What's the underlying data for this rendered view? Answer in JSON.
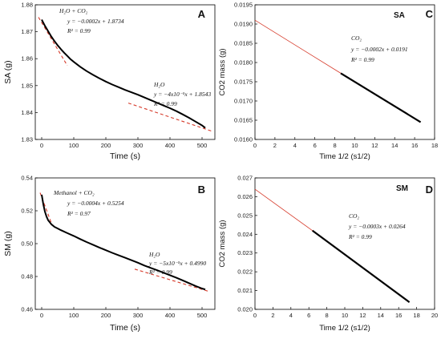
{
  "chart_data": [
    {
      "type": "line",
      "panel_label": "A",
      "xlabel": "Time  (s)",
      "ylabel": "SA (g)",
      "xticks": [
        "0",
        "100",
        "200",
        "300",
        "400",
        "500"
      ],
      "yticks": [
        "1.83",
        "1.84",
        "1.85",
        "1.86",
        "1.87",
        "1.88"
      ],
      "xlim": [
        -20,
        540
      ],
      "ylim": [
        1.83,
        1.88
      ],
      "series": [
        {
          "x": [
            0,
            10,
            20,
            30,
            40,
            50,
            60,
            70,
            80,
            90,
            100,
            120,
            140,
            160,
            180,
            200,
            220,
            240,
            260,
            280,
            300,
            320,
            340,
            360,
            380,
            400,
            420,
            440,
            460,
            480,
            500,
            510
          ],
          "y": [
            1.8745,
            1.8722,
            1.8702,
            1.8682,
            1.8665,
            1.8649,
            1.8635,
            1.8622,
            1.861,
            1.8598,
            1.8588,
            1.857,
            1.8554,
            1.854,
            1.8527,
            1.8515,
            1.8504,
            1.8494,
            1.8484,
            1.8475,
            1.8466,
            1.8456,
            1.8446,
            1.8436,
            1.8426,
            1.8416,
            1.8405,
            1.8393,
            1.838,
            1.8366,
            1.8352,
            1.8343
          ]
        }
      ],
      "fits": [
        {
          "x": [
            -10,
            80
          ],
          "y": [
            1.8754,
            1.8574
          ]
        },
        {
          "x": [
            270,
            530
          ],
          "y": [
            1.8435,
            1.8331
          ]
        }
      ],
      "annotations": [
        {
          "text": "H₂O + CO₂"
        },
        {
          "text": "y = −0.0002x + 1.8734"
        },
        {
          "text": "R² = 0.99"
        },
        {
          "text": "H₂O"
        },
        {
          "text": "y = −4x10⁻⁵x + 1.8543"
        },
        {
          "text": "R² = 0.99"
        }
      ]
    },
    {
      "type": "line",
      "panel_label": "SA",
      "xlabel": "Time 1/2 (s1/2)",
      "ylabel": "CO2 mass (g)",
      "xticks": [
        "0",
        "2",
        "4",
        "6",
        "8",
        "10",
        "12",
        "14",
        "16",
        "18"
      ],
      "yticks": [
        "0.0160",
        "0.0165",
        "0.0170",
        "0.0175",
        "0.0180",
        "0.0185",
        "0.0190",
        "0.0195"
      ],
      "xlim": [
        0,
        18
      ],
      "ylim": [
        0.016,
        0.0195
      ],
      "series": [
        {
          "x": [
            8.6,
            16.6
          ],
          "y": [
            0.01772,
            0.01645
          ]
        }
      ],
      "fits": [
        {
          "x": [
            0,
            8.6
          ],
          "y": [
            0.0191,
            0.01772
          ]
        }
      ],
      "annotations": [
        {
          "text": "CO₂"
        },
        {
          "text": "y = −0.0002x + 0.0191"
        },
        {
          "text": "R² = 0.99"
        }
      ]
    },
    {
      "type": "line",
      "panel_label": "B",
      "xlabel": "Time (s)",
      "ylabel": "SM (g)",
      "xticks": [
        "0",
        "100",
        "200",
        "300",
        "400",
        "500"
      ],
      "yticks": [
        "0.46",
        "0.48",
        "0.50",
        "0.52",
        "0.54"
      ],
      "xlim": [
        -20,
        540
      ],
      "ylim": [
        0.46,
        0.54
      ],
      "series": [
        {
          "x": [
            0,
            5,
            10,
            15,
            20,
            30,
            40,
            50,
            60,
            80,
            100,
            120,
            140,
            160,
            180,
            200,
            220,
            240,
            260,
            280,
            300,
            320,
            340,
            360,
            380,
            400,
            420,
            440,
            460,
            480,
            500,
            510
          ],
          "y": [
            0.5298,
            0.524,
            0.5195,
            0.5165,
            0.5143,
            0.5118,
            0.5102,
            0.5092,
            0.5082,
            0.5064,
            0.5047,
            0.5028,
            0.501,
            0.4993,
            0.4976,
            0.496,
            0.4944,
            0.4929,
            0.4914,
            0.4899,
            0.4884,
            0.4867,
            0.4852,
            0.4838,
            0.4823,
            0.4808,
            0.4792,
            0.4776,
            0.4759,
            0.4742,
            0.4727,
            0.4721
          ]
        }
      ],
      "fits": [
        {
          "x": [
            -5,
            30
          ],
          "y": [
            0.531,
            0.5126
          ]
        },
        {
          "x": [
            290,
            520
          ],
          "y": [
            0.4845,
            0.471
          ]
        }
      ],
      "annotations": [
        {
          "text": "Methanol + CO₂"
        },
        {
          "text": "y = −0.0004x + 0.5254"
        },
        {
          "text": "R² = 0.97"
        },
        {
          "text": "H₂O"
        },
        {
          "text": "y = −5x10⁻⁵x + 0.4990"
        },
        {
          "text": "R² = 0.99"
        }
      ]
    },
    {
      "type": "line",
      "panel_label": "SM",
      "panel_label_2": "D",
      "xlabel": "Time 1/2 (s1/2)",
      "ylabel": "CO2 mass (g)",
      "xticks": [
        "0",
        "2",
        "4",
        "6",
        "8",
        "10",
        "12",
        "14",
        "16",
        "18",
        "20"
      ],
      "yticks": [
        "0.020",
        "0.021",
        "0.022",
        "0.023",
        "0.024",
        "0.025",
        "0.026",
        "0.027"
      ],
      "xlim": [
        0,
        20
      ],
      "ylim": [
        0.02,
        0.027
      ],
      "series": [
        {
          "x": [
            6.4,
            17.2
          ],
          "y": [
            0.02419,
            0.02038
          ]
        }
      ],
      "fits": [
        {
          "x": [
            0,
            6.4
          ],
          "y": [
            0.0264,
            0.02419
          ]
        }
      ],
      "annotations": [
        {
          "text": "CO₂"
        },
        {
          "text": "y = −0.0003x + 0.0264"
        },
        {
          "text": "R² = 0.99"
        }
      ]
    }
  ]
}
